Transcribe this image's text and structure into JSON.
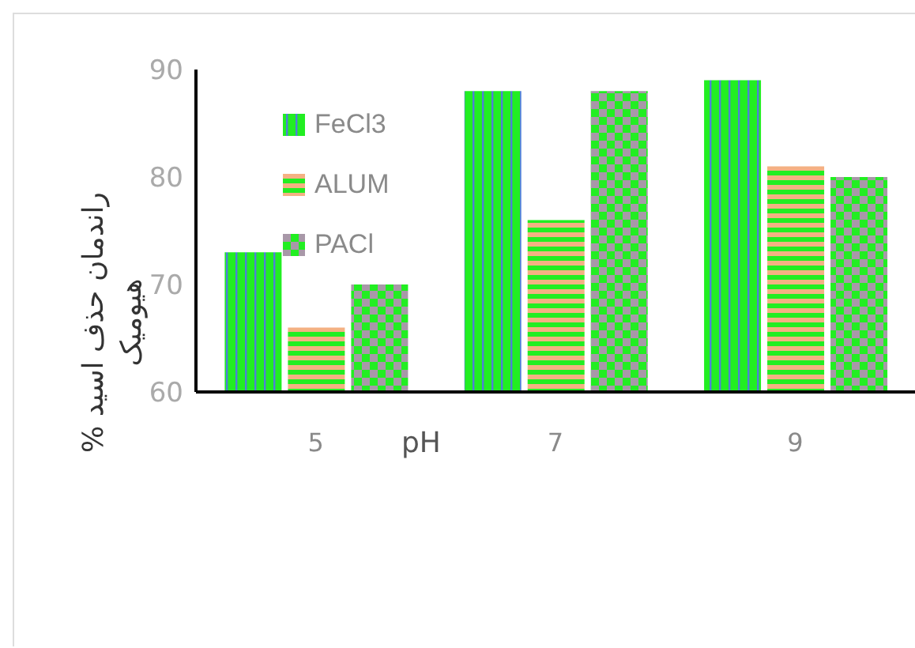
{
  "chart_data": {
    "type": "bar",
    "xlabel": "pH",
    "ylabel": "% راندمان حذف اسید هیومیک",
    "categories": [
      "5",
      "7",
      "9"
    ],
    "series": [
      {
        "name": "FeCl3",
        "color": "#22ee22",
        "values": [
          73,
          88,
          89
        ]
      },
      {
        "name": "ALUM",
        "color": "#f4b183",
        "values": [
          66,
          76,
          81
        ]
      },
      {
        "name": "PACl",
        "color": "#a898a8",
        "values": [
          70,
          88,
          80
        ]
      }
    ],
    "ylim": [
      60,
      90
    ],
    "yticks": [
      60,
      70,
      80,
      90
    ],
    "grid": false,
    "legend": "top left"
  }
}
